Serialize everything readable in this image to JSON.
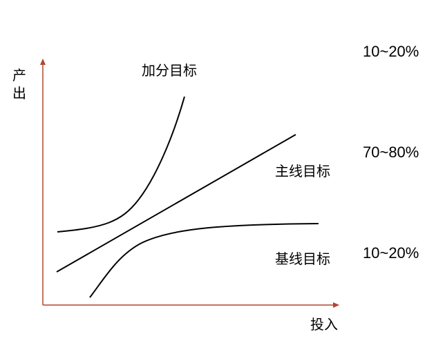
{
  "axes": {
    "y_label_chars": [
      "产",
      "出"
    ],
    "x_label": "投入",
    "color": "#b0472f"
  },
  "curves": {
    "bonus": {
      "label": "加分目标",
      "share": "10~20%"
    },
    "main": {
      "label": "主线目标",
      "share": "70~80%"
    },
    "baseline": {
      "label": "基线目标",
      "share": "10~20%"
    }
  },
  "line_color": "#000000"
}
